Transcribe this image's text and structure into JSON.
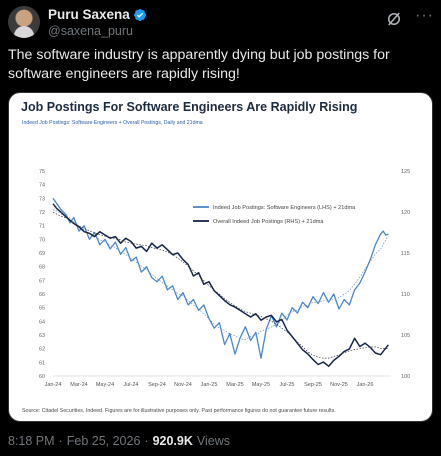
{
  "author": {
    "display_name": "Puru Saxena",
    "handle": "@saxena_puru",
    "verified_color": "#1d9bf0"
  },
  "icons": {
    "grok": "grok-icon",
    "more": "more-icon"
  },
  "tweet": {
    "text": "The software industry is apparently dying but job postings for software engineers are rapidly rising!"
  },
  "meta": {
    "time": "8:18 PM",
    "separator": "·",
    "date": "Feb 25, 2026",
    "separator2": "·",
    "views": "920.9K",
    "views_label": "Views"
  },
  "chart": {
    "source": "Source: Citadel Securities, Indeed. Figures are for illustrative purposes only. Past performance figures do not guarantee future results."
  },
  "chart_data": {
    "type": "line",
    "title": "Job Postings For Software Engineers Are Rapidly Rising",
    "subtitle": "Indeed Job Postings: Software Engineers + Overall Postings, Daily and 21dma",
    "x_ticks": [
      "Jan-24",
      "Mar-24",
      "May-24",
      "Jul-24",
      "Sep-24",
      "Nov-24",
      "Jan-25",
      "Mar-25",
      "May-25",
      "Jul-25",
      "Sep-25",
      "Nov-25",
      "Jan-26"
    ],
    "x_range": [
      0,
      26
    ],
    "y_left_ticks": [
      60,
      61,
      62,
      63,
      64,
      65,
      66,
      67,
      68,
      69,
      70,
      71,
      72,
      73,
      74,
      75
    ],
    "ylim_left": [
      60,
      75
    ],
    "y_right_ticks": [
      100,
      105,
      110,
      115,
      120,
      125
    ],
    "ylim_right": [
      100,
      125
    ],
    "legend_position": "center",
    "colors": {
      "software": "#4b86c7",
      "overall": "#15254a"
    },
    "series": [
      {
        "name": "Indeed Job Postings: Software Engineers (LHS) + 21dma",
        "axis": "left",
        "x": [
          0,
          0.3,
          0.6,
          1,
          1.3,
          1.6,
          2,
          2.4,
          2.8,
          3.2,
          3.6,
          4,
          4.4,
          4.8,
          5.2,
          5.6,
          6,
          6.4,
          6.8,
          7.2,
          7.6,
          8,
          8.4,
          8.8,
          9.2,
          9.6,
          10,
          10.4,
          10.8,
          11.2,
          11.6,
          12,
          12.4,
          12.8,
          13.2,
          13.6,
          14,
          14.4,
          14.8,
          15.2,
          15.6,
          16,
          16.4,
          16.8,
          17.2,
          17.6,
          18,
          18.4,
          18.8,
          19.2,
          19.6,
          20,
          20.4,
          20.8,
          21.2,
          21.6,
          22,
          22.4,
          22.8,
          23.2,
          23.6,
          24,
          24.4,
          24.8,
          25.2,
          25.4,
          25.6,
          25.8
        ],
        "values": [
          73.0,
          72.6,
          72.2,
          71.8,
          71.2,
          71.6,
          70.6,
          71.0,
          70.0,
          70.5,
          69.6,
          70.0,
          69.3,
          69.8,
          68.9,
          69.4,
          68.4,
          68.7,
          67.6,
          68.0,
          67.2,
          66.9,
          67.3,
          66.3,
          66.6,
          65.6,
          66.1,
          65.2,
          65.6,
          64.8,
          65.2,
          64.2,
          63.5,
          63.9,
          62.3,
          63.1,
          61.6,
          62.8,
          63.6,
          62.6,
          63.2,
          61.3,
          63.4,
          64.4,
          63.6,
          64.6,
          64.1,
          65.0,
          64.6,
          65.4,
          65.0,
          65.8,
          65.3,
          66.1,
          65.4,
          66.0,
          64.9,
          65.6,
          65.2,
          66.3,
          66.8,
          67.6,
          68.5,
          69.6,
          70.4,
          70.6,
          70.3,
          70.4
        ]
      },
      {
        "name": "Overall Indeed Job Postings (RHS) + 21dma",
        "axis": "right",
        "x": [
          0,
          0.3,
          0.6,
          1,
          1.3,
          1.6,
          2,
          2.4,
          2.8,
          3.2,
          3.6,
          4,
          4.4,
          4.8,
          5.2,
          5.6,
          6,
          6.4,
          6.8,
          7.2,
          7.6,
          8,
          8.4,
          8.8,
          9.2,
          9.6,
          10,
          10.4,
          10.8,
          11.2,
          11.6,
          12,
          12.4,
          12.8,
          13.2,
          13.6,
          14,
          14.4,
          14.8,
          15.2,
          15.6,
          16,
          16.4,
          16.8,
          17.2,
          17.6,
          18,
          18.4,
          18.8,
          19.2,
          19.6,
          20,
          20.4,
          20.8,
          21.2,
          21.6,
          22,
          22.4,
          22.8,
          23.2,
          23.6,
          24,
          24.4,
          24.8,
          25.2,
          25.8
        ],
        "values": [
          121.0,
          120.4,
          120.0,
          119.4,
          119.0,
          118.6,
          118.2,
          117.6,
          117.4,
          117.0,
          117.6,
          117.2,
          116.8,
          117.0,
          116.2,
          116.8,
          116.4,
          115.6,
          115.8,
          115.2,
          116.2,
          115.6,
          116.0,
          115.4,
          114.8,
          115.0,
          114.2,
          113.6,
          112.2,
          112.6,
          111.2,
          111.5,
          110.4,
          109.8,
          109.2,
          108.7,
          108.4,
          108.0,
          107.6,
          107.2,
          107.6,
          106.8,
          107.2,
          107.4,
          106.6,
          106.9,
          105.6,
          104.8,
          104.0,
          103.2,
          102.7,
          102.0,
          101.4,
          101.7,
          101.2,
          101.9,
          102.4,
          103.0,
          103.3,
          104.6,
          103.6,
          104.0,
          103.5,
          102.8,
          102.6,
          103.8
        ]
      }
    ]
  }
}
